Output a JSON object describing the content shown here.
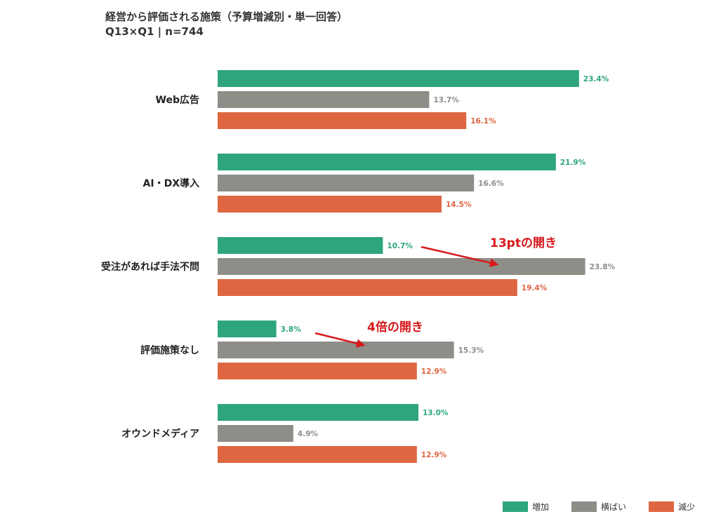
{
  "title": "経営から評価される施策（予算増減別・単一回答）",
  "subtitle": "Q13×Q1 | n=744",
  "chart_data": {
    "type": "bar",
    "orientation": "horizontal",
    "categories": [
      "Web広告",
      "AI・DX導入",
      "受注があれば手法不問",
      "評価施策なし",
      "オウンドメディア"
    ],
    "series": [
      {
        "name": "増加",
        "values": [
          23.4,
          21.9,
          10.7,
          3.8,
          13.0
        ],
        "labels": [
          "23.4%",
          "21.9%",
          "10.7%",
          "3.8%",
          "13.0%"
        ],
        "color": "#2ea57f"
      },
      {
        "name": "横ばい",
        "values": [
          13.7,
          16.6,
          23.8,
          15.3,
          4.9
        ],
        "labels": [
          "13.7%",
          "16.6%",
          "23.8%",
          "15.3%",
          "4.9%"
        ],
        "color": "#8e8d88"
      },
      {
        "name": "減少",
        "values": [
          16.1,
          14.5,
          19.4,
          12.9,
          12.9
        ],
        "labels": [
          "16.1%",
          "14.5%",
          "19.4%",
          "12.9%",
          "12.9%"
        ],
        "color": "#de6641"
      }
    ],
    "annotations": [
      {
        "text": "13ptの開き",
        "category_index": 2
      },
      {
        "text": "4倍の開き",
        "category_index": 3
      }
    ],
    "legend_position": "bottom-right",
    "grid": false
  },
  "colors": {
    "annotation": "#d7191c",
    "value_increase": "#2ea57f",
    "value_flat": "#8e8d88",
    "value_decrease": "#de6641"
  }
}
